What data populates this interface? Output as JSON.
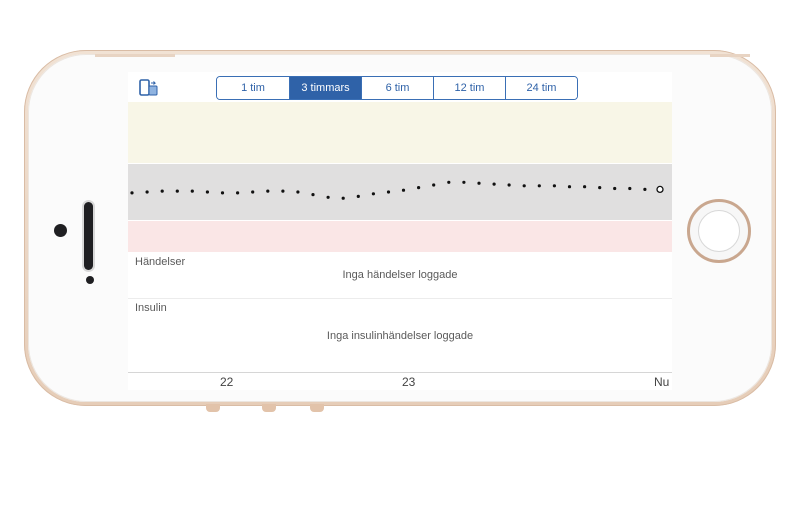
{
  "toolbar": {
    "device_icon": "phone-transfer-icon",
    "ranges": [
      "1 tim",
      "3 timmars",
      "6 tim",
      "12 tim",
      "24 tim"
    ],
    "selected_range": "3 timmars",
    "accent_color": "#2f62a8"
  },
  "chart_data": {
    "type": "scatter",
    "description_bands": [
      "high-zone",
      "target-zone",
      "low-zone"
    ],
    "x": [
      0,
      1,
      2,
      3,
      4,
      5,
      6,
      7,
      8,
      9,
      10,
      11,
      12,
      13,
      14,
      15,
      16,
      17,
      18,
      19,
      20,
      21,
      22,
      23,
      24,
      25,
      26,
      27,
      28,
      29,
      30,
      31,
      32,
      33,
      34,
      35
    ],
    "y": [
      0.52,
      0.5,
      0.48,
      0.48,
      0.48,
      0.5,
      0.52,
      0.52,
      0.5,
      0.48,
      0.48,
      0.5,
      0.56,
      0.62,
      0.64,
      0.6,
      0.54,
      0.5,
      0.46,
      0.4,
      0.34,
      0.28,
      0.28,
      0.3,
      0.32,
      0.34,
      0.36,
      0.36,
      0.36,
      0.38,
      0.38,
      0.4,
      0.42,
      0.42,
      0.44,
      0.44
    ],
    "y_meaning": "relative level in target band (0 = top, 1 = bottom)",
    "last_point": "current-reading"
  },
  "events": {
    "label": "Händelser",
    "empty_message": "Inga händelser loggade"
  },
  "insulin": {
    "label": "Insulin",
    "empty_message": "Inga insulinhändelser loggade"
  },
  "axis": {
    "ticks": [
      "22",
      "23",
      "Nu"
    ]
  }
}
